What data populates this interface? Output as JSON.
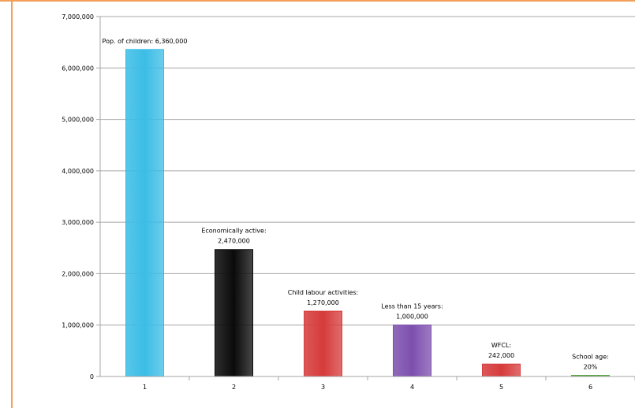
{
  "colors": {
    "frame_border": "#f4a05a",
    "grid": "#a6a6a6",
    "bar_1": "#3bbde6",
    "bar_2": "#0a0a0a",
    "bar_3": "#d63b3b",
    "bar_4": "#7d4fae",
    "bar_5": "#d63b3b",
    "bar_6": "#5aa546"
  },
  "chart_data": {
    "type": "bar",
    "categories": [
      "1",
      "2",
      "3",
      "4",
      "5",
      "6"
    ],
    "values": [
      6360000,
      2470000,
      1270000,
      1000000,
      242000,
      20000
    ],
    "ylim": [
      0,
      7000000
    ],
    "yticks": [
      "0",
      "1,000,000",
      "2,000,000",
      "3,000,000",
      "4,000,000",
      "5,000,000",
      "6,000,000",
      "7,000,000"
    ],
    "grid": true,
    "legend": "none",
    "data_labels": [
      [
        "Pop. of children: 6,360,000"
      ],
      [
        "Economically active:",
        "2,470,000"
      ],
      [
        "Child labour activities:",
        "1,270,000"
      ],
      [
        "Less  than 15 years:",
        "1,000,000"
      ],
      [
        "WFCL:",
        "242,000"
      ],
      [
        "School age:",
        "20%"
      ]
    ]
  }
}
